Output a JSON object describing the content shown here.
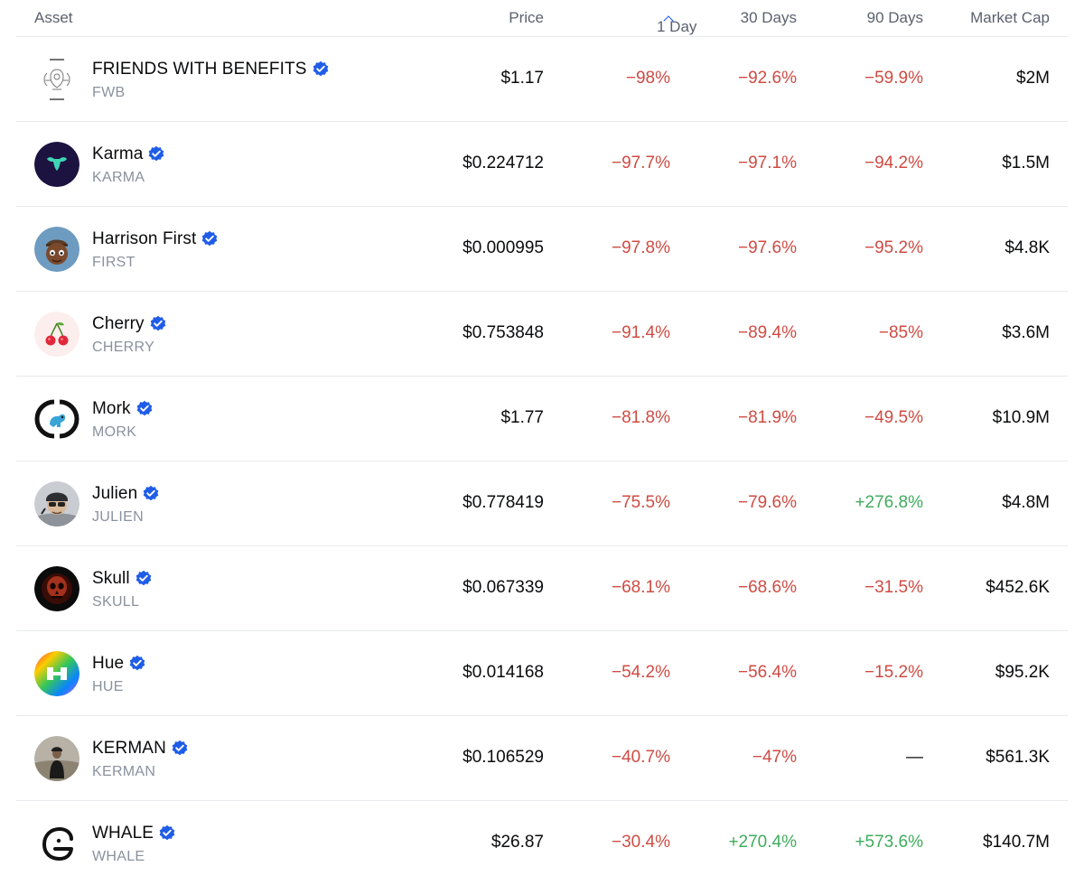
{
  "header": {
    "asset": "Asset",
    "price": "Price",
    "day1": "1 Day",
    "day30": "30 Days",
    "day90": "90 Days",
    "market_cap": "Market Cap"
  },
  "colors": {
    "negative": "#cf4b43",
    "positive": "#3fac5c",
    "neutral": "#0a0b0d",
    "accent": "#1652f0",
    "verified": "#1f5ce8"
  },
  "rows": [
    {
      "name": "FRIENDS WITH BENEFITS",
      "ticker": "FWB",
      "price": "$1.17",
      "day1": "−98%",
      "day30": "−92.6%",
      "day90": "−59.9%",
      "market_cap": "$2M",
      "icon": "fwb-crest-icon"
    },
    {
      "name": "Karma",
      "ticker": "KARMA",
      "price": "$0.224712",
      "day1": "−97.7%",
      "day30": "−97.1%",
      "day90": "−94.2%",
      "market_cap": "$1.5M",
      "icon": "karma-logo-icon"
    },
    {
      "name": "Harrison First",
      "ticker": "FIRST",
      "price": "$0.000995",
      "day1": "−97.8%",
      "day30": "−97.6%",
      "day90": "−95.2%",
      "market_cap": "$4.8K",
      "icon": "harrison-avatar-icon"
    },
    {
      "name": "Cherry",
      "ticker": "CHERRY",
      "price": "$0.753848",
      "day1": "−91.4%",
      "day30": "−89.4%",
      "day90": "−85%",
      "market_cap": "$3.6M",
      "icon": "cherry-icon"
    },
    {
      "name": "Mork",
      "ticker": "MORK",
      "price": "$1.77",
      "day1": "−81.8%",
      "day30": "−81.9%",
      "day90": "−49.5%",
      "market_cap": "$10.9M",
      "icon": "mork-logo-icon"
    },
    {
      "name": "Julien",
      "ticker": "JULIEN",
      "price": "$0.778419",
      "day1": "−75.5%",
      "day30": "−79.6%",
      "day90": "+276.8%",
      "market_cap": "$4.8M",
      "icon": "julien-avatar-icon"
    },
    {
      "name": "Skull",
      "ticker": "SKULL",
      "price": "$0.067339",
      "day1": "−68.1%",
      "day30": "−68.6%",
      "day90": "−31.5%",
      "market_cap": "$452.6K",
      "icon": "skull-icon"
    },
    {
      "name": "Hue",
      "ticker": "HUE",
      "price": "$0.014168",
      "day1": "−54.2%",
      "day30": "−56.4%",
      "day90": "−15.2%",
      "market_cap": "$95.2K",
      "icon": "hue-logo-icon"
    },
    {
      "name": "KERMAN",
      "ticker": "KERMAN",
      "price": "$0.106529",
      "day1": "−40.7%",
      "day30": "−47%",
      "day90": "—",
      "market_cap": "$561.3K",
      "icon": "kerman-avatar-icon"
    },
    {
      "name": "WHALE",
      "ticker": "WHALE",
      "price": "$26.87",
      "day1": "−30.4%",
      "day30": "+270.4%",
      "day90": "+573.6%",
      "market_cap": "$140.7M",
      "icon": "whale-logo-icon"
    }
  ]
}
